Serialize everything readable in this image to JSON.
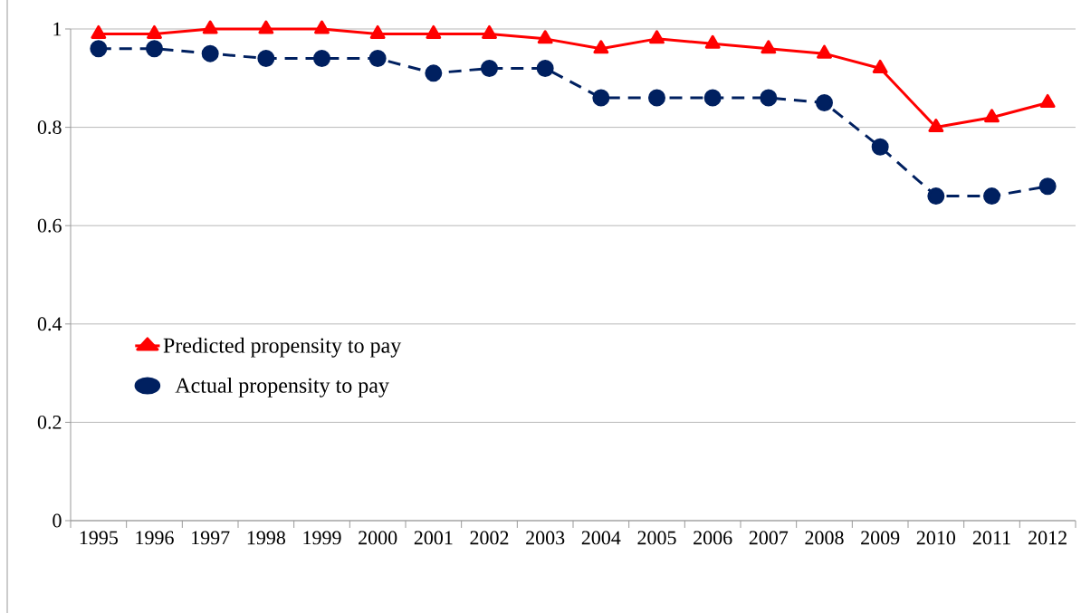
{
  "chart_data": {
    "type": "line",
    "categories": [
      "1995",
      "1996",
      "1997",
      "1998",
      "1999",
      "2000",
      "2001",
      "2002",
      "2003",
      "2004",
      "2005",
      "2006",
      "2007",
      "2008",
      "2009",
      "2010",
      "2011",
      "2012"
    ],
    "series": [
      {
        "name": "Predicted propensity to pay",
        "color": "#ff0000",
        "marker": "triangle",
        "line_style": "solid",
        "values": [
          0.99,
          0.99,
          1.0,
          1.0,
          1.0,
          0.99,
          0.99,
          0.99,
          0.98,
          0.96,
          0.98,
          0.97,
          0.96,
          0.95,
          0.92,
          0.8,
          0.82,
          0.85
        ]
      },
      {
        "name": "Actual propensity to pay",
        "color": "#002060",
        "marker": "circle",
        "line_style": "dashed",
        "values": [
          0.96,
          0.96,
          0.95,
          0.94,
          0.94,
          0.94,
          0.91,
          0.92,
          0.92,
          0.86,
          0.86,
          0.86,
          0.86,
          0.85,
          0.76,
          0.66,
          0.66,
          0.68
        ]
      }
    ],
    "ylim": [
      0,
      1
    ],
    "yticks": [
      0,
      0.2,
      0.4,
      0.6,
      0.8,
      1
    ],
    "grid": "y",
    "legend": "left"
  }
}
